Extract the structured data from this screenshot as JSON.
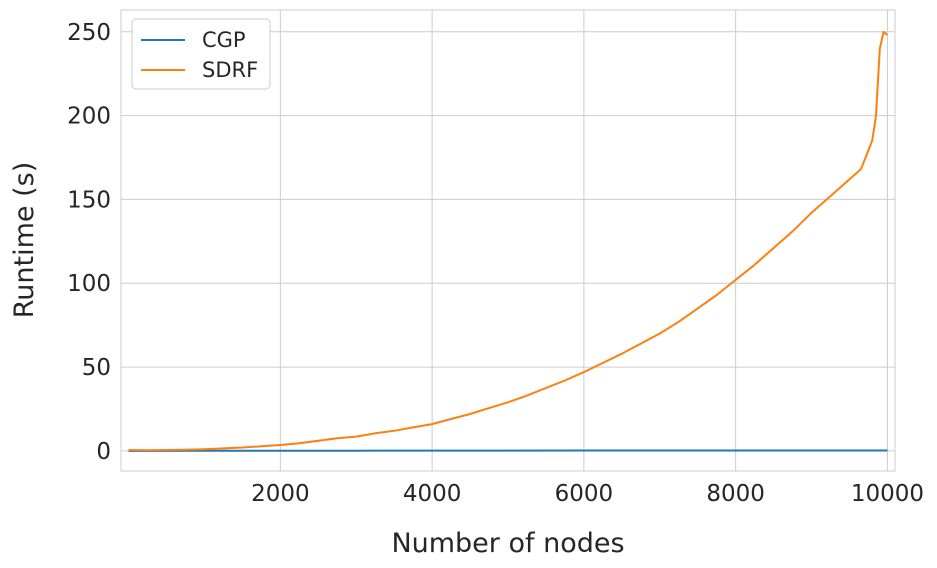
{
  "chart_data": {
    "type": "line",
    "xlabel": "Number of nodes",
    "ylabel": "Runtime (s)",
    "xlim": [
      -100,
      10100
    ],
    "ylim": [
      -12,
      263
    ],
    "x_ticks": [
      2000,
      4000,
      6000,
      8000,
      10000
    ],
    "y_ticks": [
      0,
      50,
      100,
      150,
      200,
      250
    ],
    "grid": true,
    "legend_position": "top-left",
    "series": [
      {
        "name": "CGP",
        "color": "#1f77b4",
        "x": [
          0,
          1000,
          2000,
          3000,
          4000,
          5000,
          6000,
          7000,
          8000,
          9000,
          10000
        ],
        "y": [
          0,
          0.05,
          0.1,
          0.1,
          0.15,
          0.15,
          0.2,
          0.2,
          0.2,
          0.25,
          0.25
        ]
      },
      {
        "name": "SDRF",
        "color": "#ff7f0e",
        "x": [
          0,
          250,
          500,
          750,
          1000,
          1250,
          1500,
          1750,
          2000,
          2250,
          2500,
          2750,
          3000,
          3250,
          3500,
          3750,
          4000,
          4250,
          4500,
          4750,
          5000,
          5250,
          5500,
          5750,
          6000,
          6250,
          6500,
          6750,
          7000,
          7250,
          7500,
          7750,
          8000,
          8250,
          8500,
          8750,
          9000,
          9250,
          9500,
          9650,
          9800,
          9850,
          9900,
          9950,
          10000
        ],
        "y": [
          0.5,
          0.4,
          0.5,
          0.7,
          1.0,
          1.5,
          2.0,
          2.8,
          3.5,
          4.5,
          6.0,
          7.5,
          8.5,
          10.5,
          12.0,
          14.0,
          16.0,
          19.0,
          22.0,
          25.5,
          29.0,
          33.0,
          37.5,
          42.0,
          47.0,
          52.5,
          58.0,
          64.0,
          70.0,
          77.0,
          85.0,
          93.0,
          102.0,
          111.0,
          121.0,
          131.0,
          142.0,
          152.0,
          162.0,
          168.0,
          185.0,
          200.0,
          240.0,
          250.0,
          248.0
        ]
      }
    ]
  }
}
